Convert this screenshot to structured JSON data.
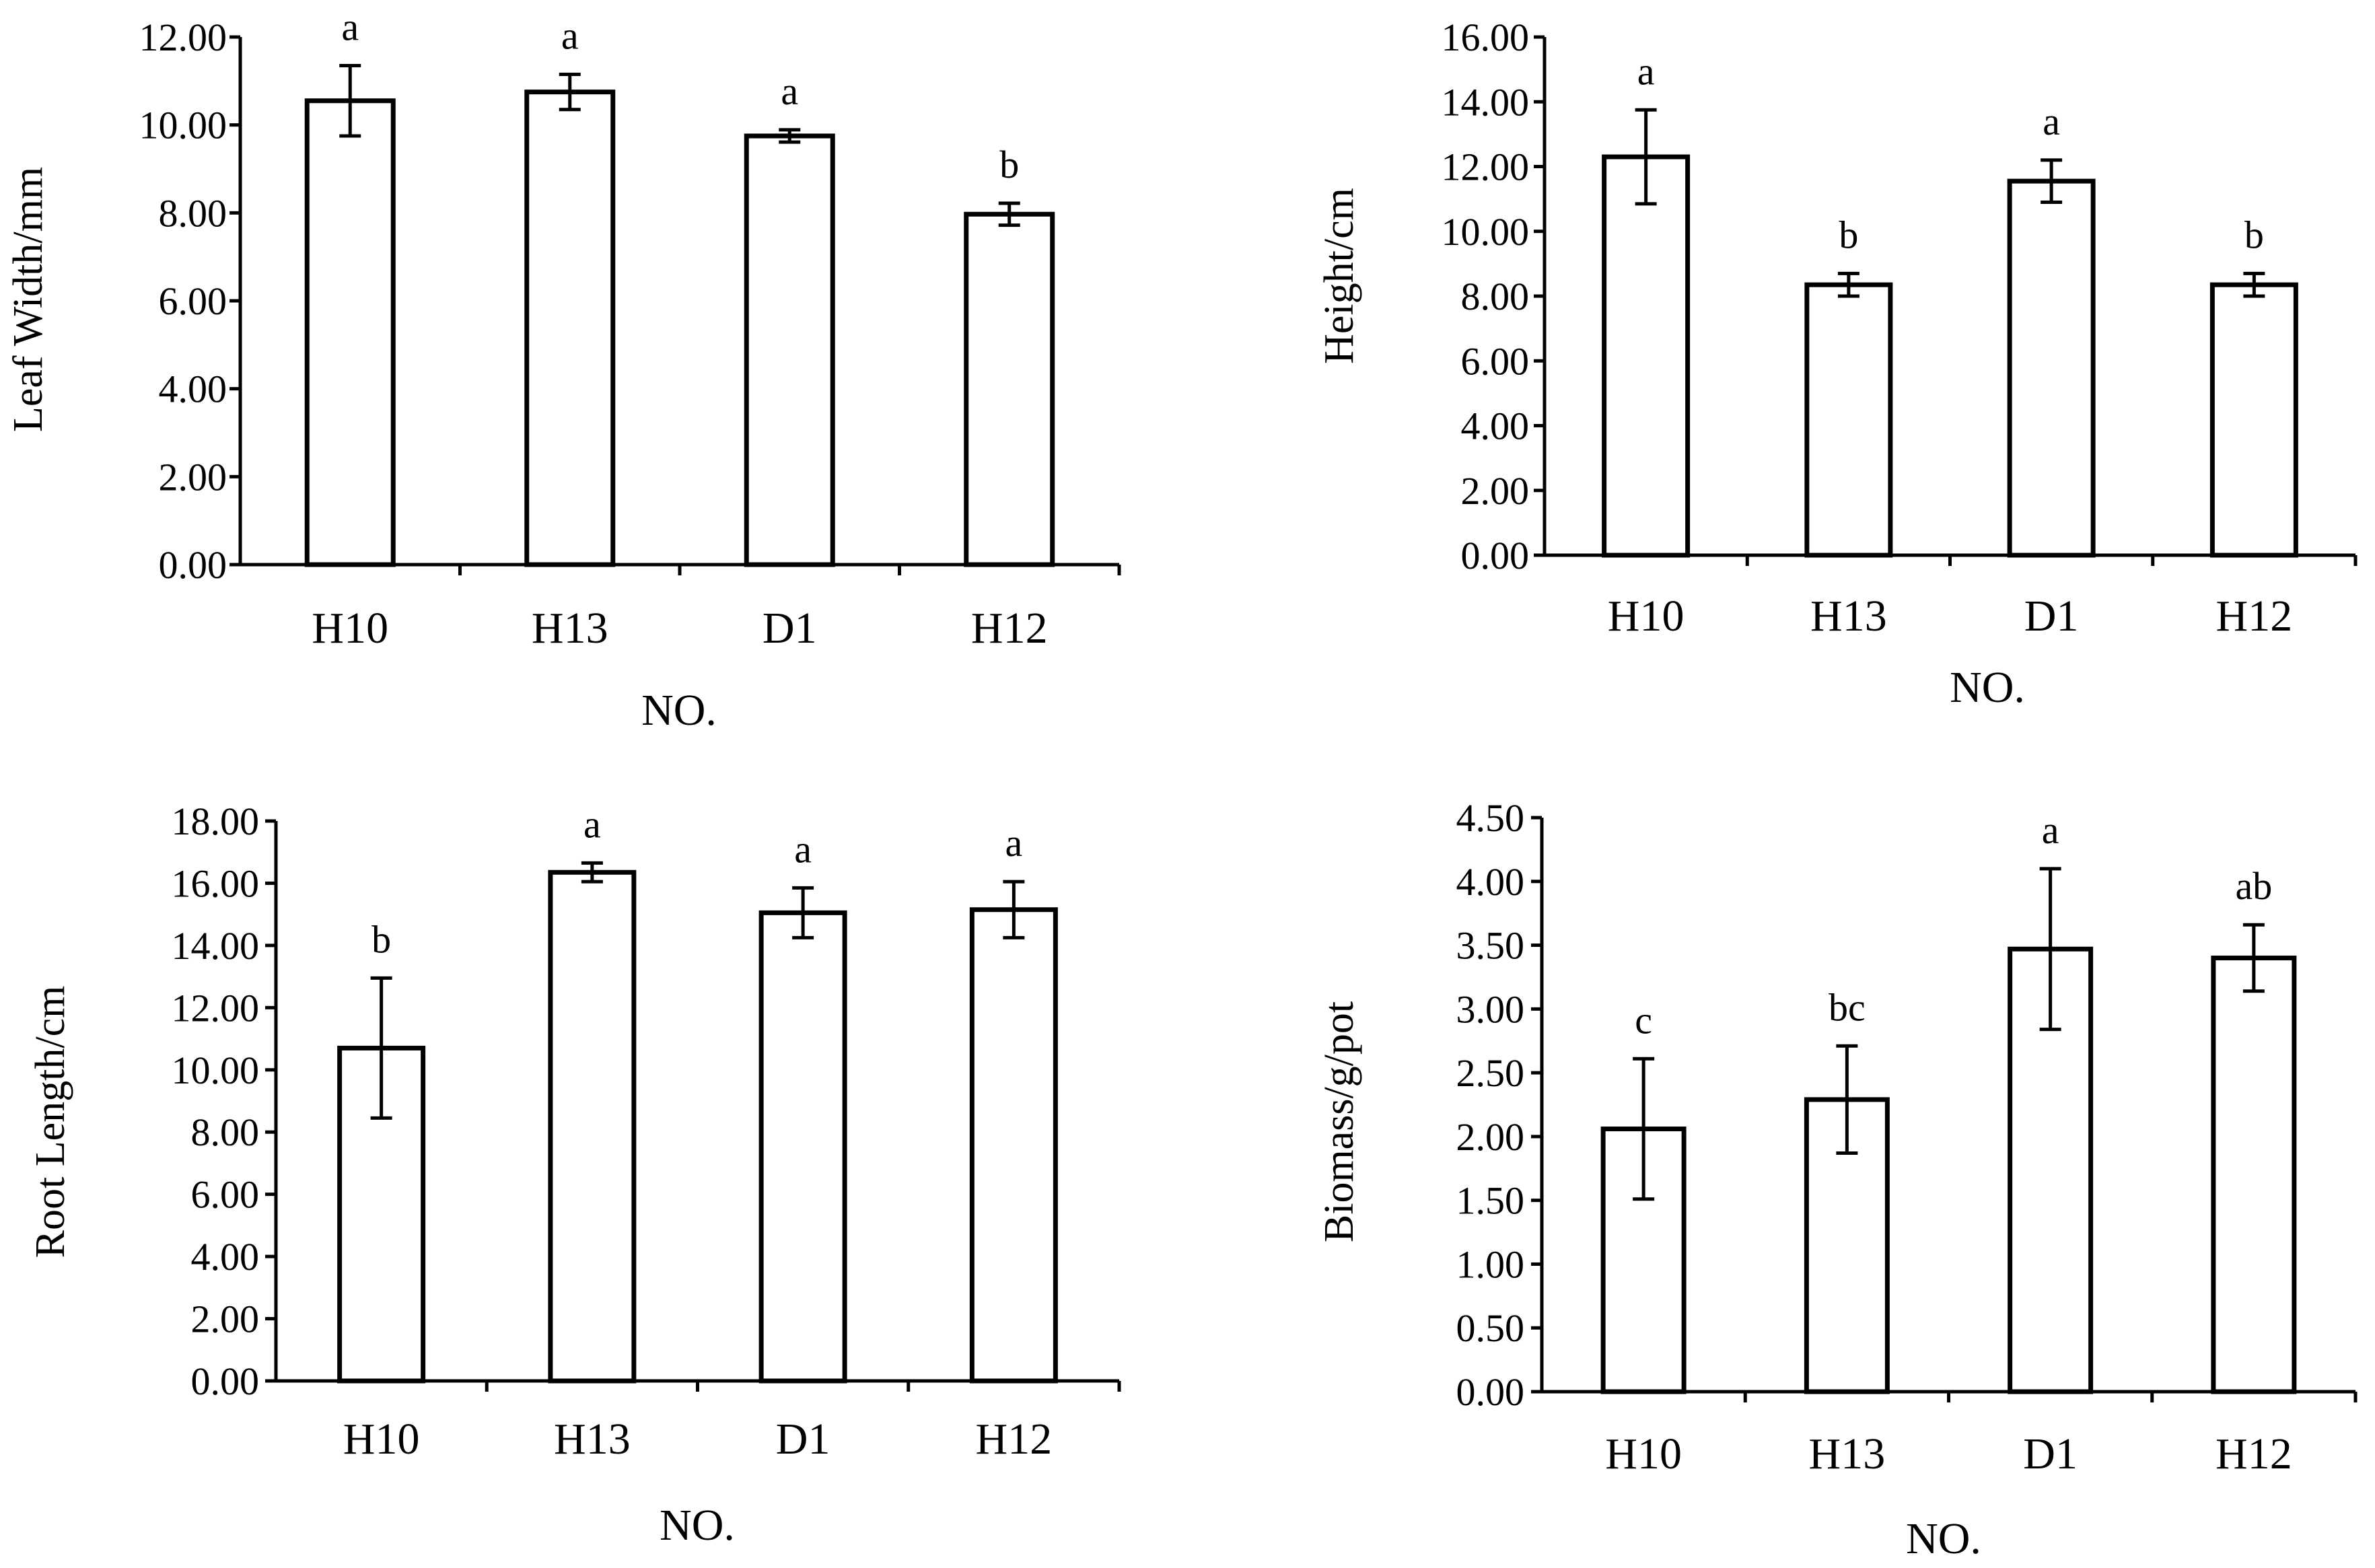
{
  "chart_data": [
    {
      "type": "bar",
      "categories": [
        "H10",
        "H13",
        "D1",
        "H12"
      ],
      "values": [
        10.55,
        10.75,
        9.75,
        7.97
      ],
      "errors": [
        0.8,
        0.4,
        0.14,
        0.25
      ],
      "significance": [
        "a",
        "a",
        "a",
        "b"
      ],
      "xlabel": "NO.",
      "ylabel": "Leaf Width/mm",
      "ylim": [
        0,
        12
      ],
      "yticks": [
        "0.00",
        "2.00",
        "4.00",
        "6.00",
        "8.00",
        "10.00",
        "12.00"
      ]
    },
    {
      "type": "bar",
      "categories": [
        "H10",
        "H13",
        "D1",
        "H12"
      ],
      "values": [
        12.3,
        8.35,
        11.55,
        8.35
      ],
      "errors": [
        1.45,
        0.35,
        0.65,
        0.35
      ],
      "significance": [
        "a",
        "b",
        "a",
        "b"
      ],
      "xlabel": "NO.",
      "ylabel": "Height/cm",
      "ylim": [
        0,
        16
      ],
      "yticks": [
        "0.00",
        "2.00",
        "4.00",
        "6.00",
        "8.00",
        "10.00",
        "12.00",
        "14.00",
        "16.00"
      ]
    },
    {
      "type": "bar",
      "categories": [
        "H10",
        "H13",
        "D1",
        "H12"
      ],
      "values": [
        10.7,
        16.35,
        15.05,
        15.15
      ],
      "errors": [
        2.25,
        0.3,
        0.8,
        0.9
      ],
      "significance": [
        "b",
        "a",
        "a",
        "a"
      ],
      "xlabel": "NO.",
      "ylabel": "Root Length/cm",
      "ylim": [
        0,
        18
      ],
      "yticks": [
        "0.00",
        "2.00",
        "4.00",
        "6.00",
        "8.00",
        "10.00",
        "12.00",
        "14.00",
        "16.00",
        "18.00"
      ]
    },
    {
      "type": "bar",
      "categories": [
        "H10",
        "H13",
        "D1",
        "H12"
      ],
      "values": [
        2.06,
        2.29,
        3.47,
        3.4
      ],
      "errors": [
        0.55,
        0.42,
        0.63,
        0.26
      ],
      "significance": [
        "c",
        "bc",
        "a",
        "ab"
      ],
      "xlabel": "NO.",
      "ylabel": "Biomass/g/pot",
      "ylim": [
        0,
        4.5
      ],
      "yticks": [
        "0.00",
        "0.50",
        "1.00",
        "1.50",
        "2.00",
        "2.50",
        "3.00",
        "3.50",
        "4.00",
        "4.50"
      ]
    }
  ]
}
